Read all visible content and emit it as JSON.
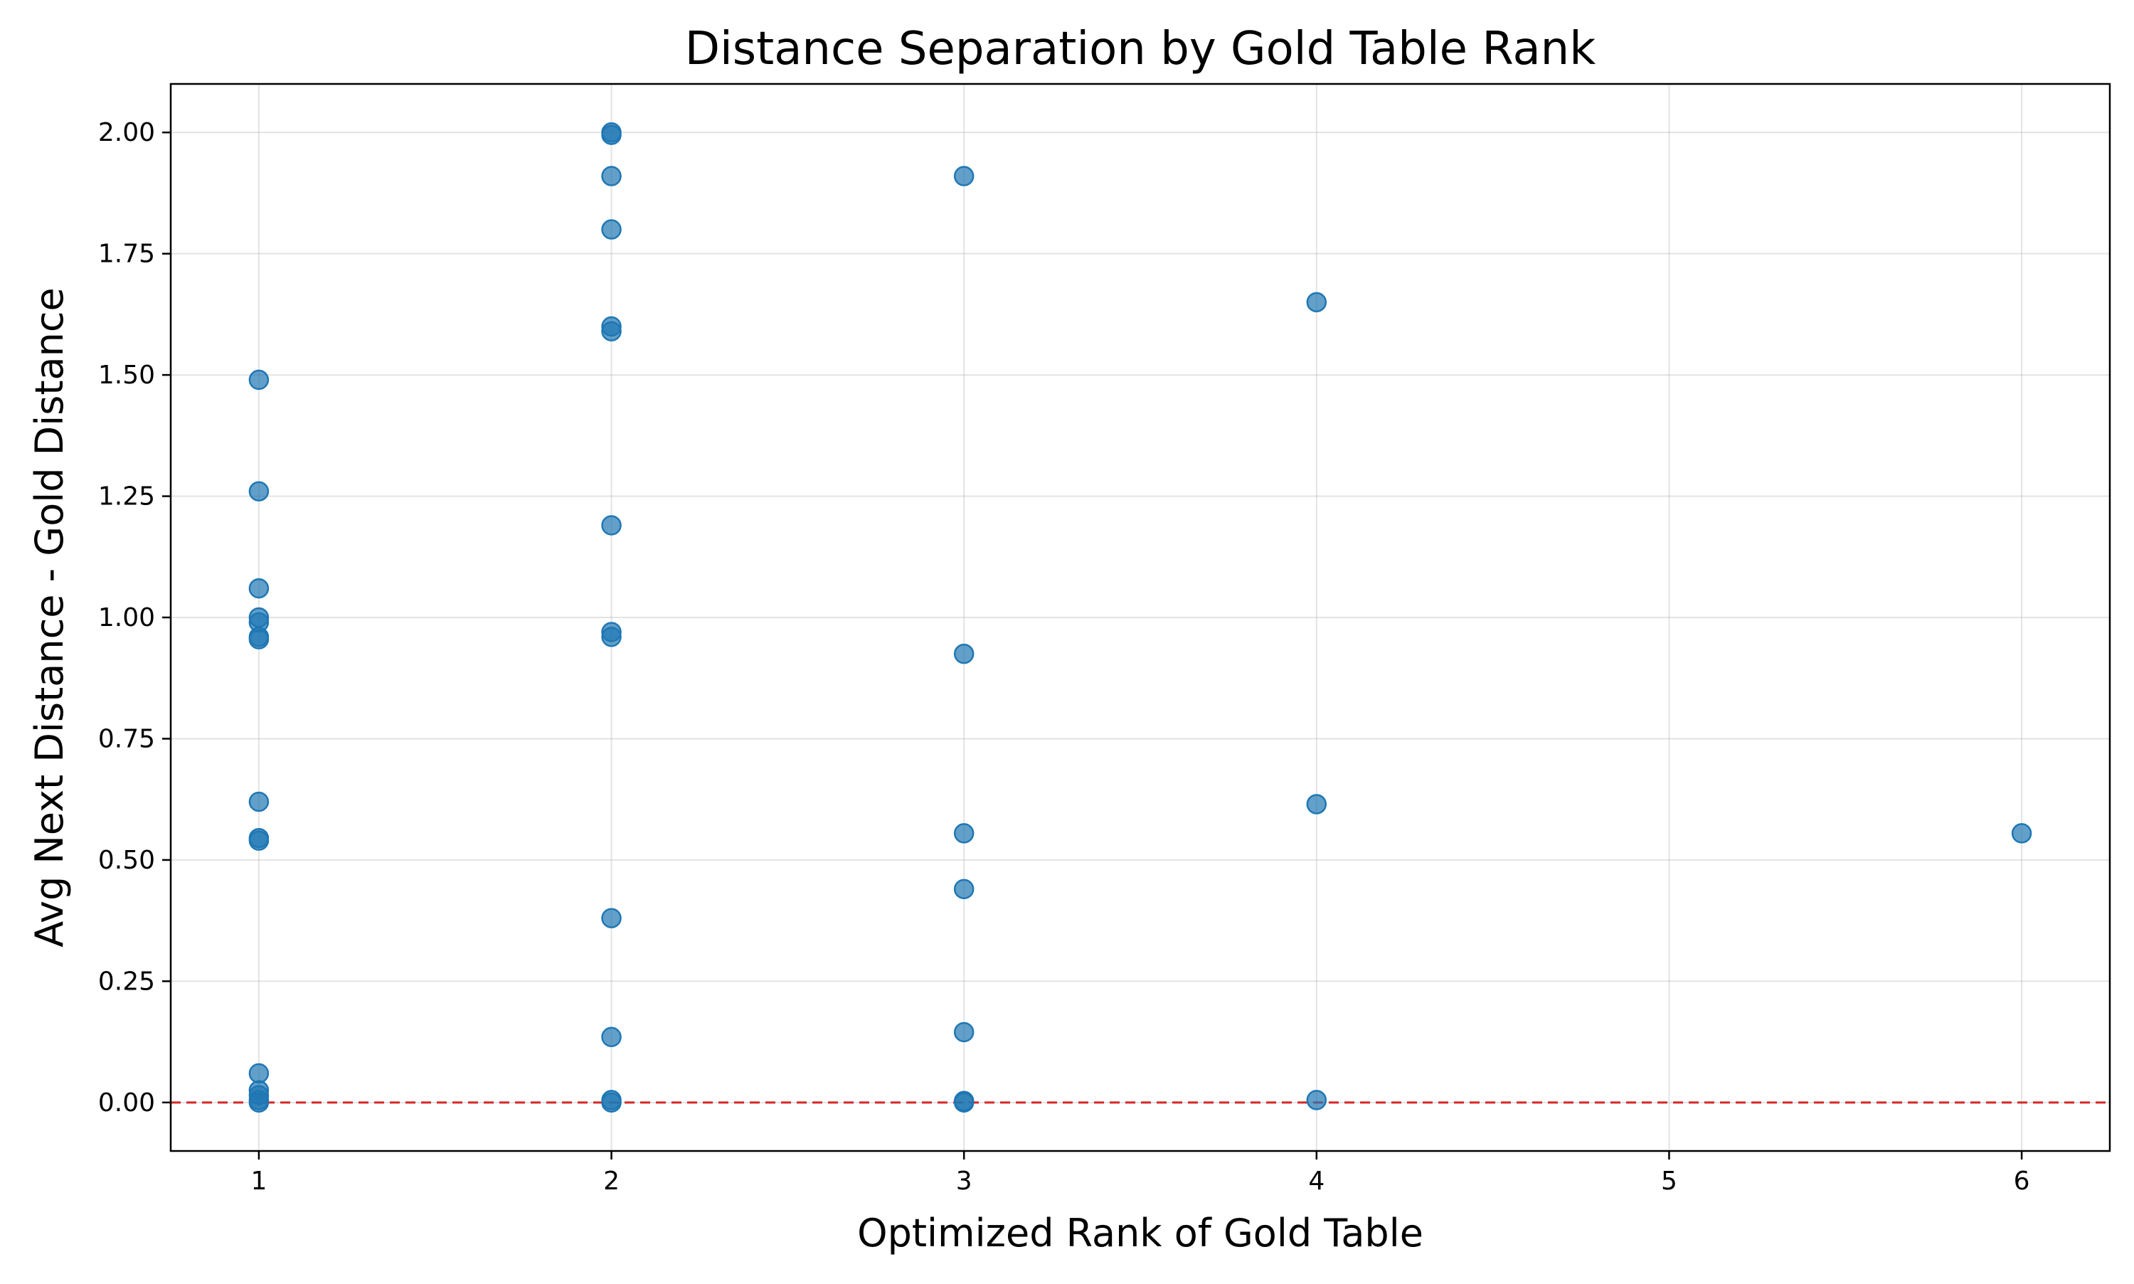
{
  "chart_data": {
    "type": "scatter",
    "title": "Distance Separation by Gold Table Rank",
    "xlabel": "Optimized Rank of Gold Table",
    "ylabel": "Avg Next Distance - Gold Distance",
    "xlim": [
      0.75,
      6.25
    ],
    "ylim": [
      -0.1,
      2.1
    ],
    "xticks": [
      1,
      2,
      3,
      4,
      5,
      6
    ],
    "yticks": [
      0.0,
      0.25,
      0.5,
      0.75,
      1.0,
      1.25,
      1.5,
      1.75,
      2.0
    ],
    "xtick_labels": [
      "1",
      "2",
      "3",
      "4",
      "5",
      "6"
    ],
    "ytick_labels": [
      "0.00",
      "0.25",
      "0.50",
      "0.75",
      "1.00",
      "1.25",
      "1.50",
      "1.75",
      "2.00"
    ],
    "grid": true,
    "reference_line": {
      "y": 0.0,
      "style": "dashed",
      "color": "#d62728"
    },
    "point_color": "#1f77b4",
    "points": [
      {
        "x": 1,
        "y": 1.49
      },
      {
        "x": 1,
        "y": 1.26
      },
      {
        "x": 1,
        "y": 1.06
      },
      {
        "x": 1,
        "y": 1.0
      },
      {
        "x": 1,
        "y": 0.99
      },
      {
        "x": 1,
        "y": 0.96
      },
      {
        "x": 1,
        "y": 0.955
      },
      {
        "x": 1,
        "y": 0.62
      },
      {
        "x": 1,
        "y": 0.545
      },
      {
        "x": 1,
        "y": 0.54
      },
      {
        "x": 1,
        "y": 0.06
      },
      {
        "x": 1,
        "y": 0.025
      },
      {
        "x": 1,
        "y": 0.015
      },
      {
        "x": 1,
        "y": 0.005
      },
      {
        "x": 1,
        "y": 0.0
      },
      {
        "x": 2,
        "y": 2.0
      },
      {
        "x": 2,
        "y": 1.995
      },
      {
        "x": 2,
        "y": 1.91
      },
      {
        "x": 2,
        "y": 1.8
      },
      {
        "x": 2,
        "y": 1.6
      },
      {
        "x": 2,
        "y": 1.59
      },
      {
        "x": 2,
        "y": 1.19
      },
      {
        "x": 2,
        "y": 0.97
      },
      {
        "x": 2,
        "y": 0.96
      },
      {
        "x": 2,
        "y": 0.38
      },
      {
        "x": 2,
        "y": 0.135
      },
      {
        "x": 2,
        "y": 0.005
      },
      {
        "x": 2,
        "y": 0.0
      },
      {
        "x": 3,
        "y": 1.91
      },
      {
        "x": 3,
        "y": 0.925
      },
      {
        "x": 3,
        "y": 0.555
      },
      {
        "x": 3,
        "y": 0.44
      },
      {
        "x": 3,
        "y": 0.145
      },
      {
        "x": 3,
        "y": 0.003
      },
      {
        "x": 3,
        "y": 0.0
      },
      {
        "x": 4,
        "y": 1.65
      },
      {
        "x": 4,
        "y": 0.615
      },
      {
        "x": 4,
        "y": 0.005
      },
      {
        "x": 6,
        "y": 0.555
      }
    ]
  }
}
